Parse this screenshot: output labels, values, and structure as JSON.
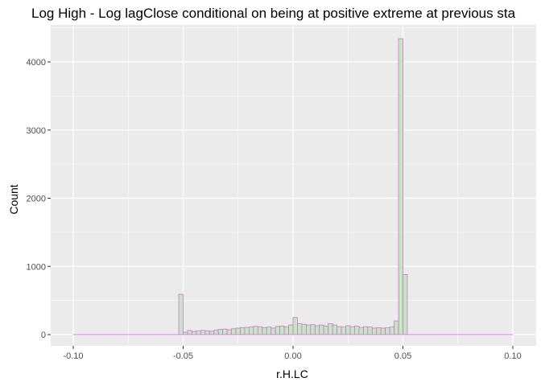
{
  "chart_data": {
    "type": "bar",
    "title": "Log High - Log lagClose conditional on being at positive extreme at previous sta",
    "xlabel": "r.H.LC",
    "ylabel": "Count",
    "xlim": [
      -0.1,
      0.1
    ],
    "ylim": [
      0,
      4400
    ],
    "x_ticks": [
      -0.1,
      -0.05,
      0.0,
      0.05,
      0.1
    ],
    "x_tick_labels": [
      "-0.10",
      "-0.05",
      "0.00",
      "0.05",
      "0.10"
    ],
    "y_ticks": [
      0,
      1000,
      2000,
      3000,
      4000
    ],
    "y_tick_labels": [
      "0",
      "1000",
      "2000",
      "3000",
      "4000"
    ],
    "bin_width": 0.002,
    "grid": true,
    "colors": {
      "fill": "#c1e8c1",
      "outline": "#da70d6",
      "panel": "#ebebeb",
      "grid": "#ffffff"
    },
    "bins": [
      {
        "x": -0.1,
        "count": 0
      },
      {
        "x": -0.098,
        "count": 0
      },
      {
        "x": -0.096,
        "count": 0
      },
      {
        "x": -0.094,
        "count": 0
      },
      {
        "x": -0.092,
        "count": 0
      },
      {
        "x": -0.09,
        "count": 0
      },
      {
        "x": -0.088,
        "count": 0
      },
      {
        "x": -0.086,
        "count": 0
      },
      {
        "x": -0.084,
        "count": 0
      },
      {
        "x": -0.082,
        "count": 0
      },
      {
        "x": -0.08,
        "count": 0
      },
      {
        "x": -0.078,
        "count": 0
      },
      {
        "x": -0.076,
        "count": 0
      },
      {
        "x": -0.074,
        "count": 0
      },
      {
        "x": -0.072,
        "count": 0
      },
      {
        "x": -0.07,
        "count": 0
      },
      {
        "x": -0.068,
        "count": 0
      },
      {
        "x": -0.066,
        "count": 0
      },
      {
        "x": -0.064,
        "count": 0
      },
      {
        "x": -0.062,
        "count": 0
      },
      {
        "x": -0.06,
        "count": 0
      },
      {
        "x": -0.058,
        "count": 0
      },
      {
        "x": -0.056,
        "count": 0
      },
      {
        "x": -0.054,
        "count": 0
      },
      {
        "x": -0.052,
        "count": 590
      },
      {
        "x": -0.05,
        "count": 35
      },
      {
        "x": -0.048,
        "count": 60
      },
      {
        "x": -0.046,
        "count": 45
      },
      {
        "x": -0.044,
        "count": 55
      },
      {
        "x": -0.042,
        "count": 60
      },
      {
        "x": -0.04,
        "count": 55
      },
      {
        "x": -0.038,
        "count": 50
      },
      {
        "x": -0.036,
        "count": 65
      },
      {
        "x": -0.034,
        "count": 75
      },
      {
        "x": -0.032,
        "count": 80
      },
      {
        "x": -0.03,
        "count": 70
      },
      {
        "x": -0.028,
        "count": 85
      },
      {
        "x": -0.026,
        "count": 95
      },
      {
        "x": -0.024,
        "count": 100
      },
      {
        "x": -0.022,
        "count": 105
      },
      {
        "x": -0.02,
        "count": 110
      },
      {
        "x": -0.018,
        "count": 120
      },
      {
        "x": -0.016,
        "count": 115
      },
      {
        "x": -0.014,
        "count": 100
      },
      {
        "x": -0.012,
        "count": 110
      },
      {
        "x": -0.01,
        "count": 95
      },
      {
        "x": -0.008,
        "count": 120
      },
      {
        "x": -0.006,
        "count": 125
      },
      {
        "x": -0.004,
        "count": 110
      },
      {
        "x": -0.002,
        "count": 140
      },
      {
        "x": 0.0,
        "count": 250
      },
      {
        "x": 0.002,
        "count": 160
      },
      {
        "x": 0.004,
        "count": 150
      },
      {
        "x": 0.006,
        "count": 140
      },
      {
        "x": 0.008,
        "count": 145
      },
      {
        "x": 0.01,
        "count": 130
      },
      {
        "x": 0.012,
        "count": 140
      },
      {
        "x": 0.014,
        "count": 125
      },
      {
        "x": 0.016,
        "count": 160
      },
      {
        "x": 0.018,
        "count": 140
      },
      {
        "x": 0.02,
        "count": 115
      },
      {
        "x": 0.022,
        "count": 110
      },
      {
        "x": 0.024,
        "count": 130
      },
      {
        "x": 0.026,
        "count": 115
      },
      {
        "x": 0.028,
        "count": 125
      },
      {
        "x": 0.03,
        "count": 105
      },
      {
        "x": 0.032,
        "count": 115
      },
      {
        "x": 0.034,
        "count": 110
      },
      {
        "x": 0.036,
        "count": 95
      },
      {
        "x": 0.038,
        "count": 100
      },
      {
        "x": 0.04,
        "count": 95
      },
      {
        "x": 0.042,
        "count": 100
      },
      {
        "x": 0.044,
        "count": 110
      },
      {
        "x": 0.046,
        "count": 200
      },
      {
        "x": 0.048,
        "count": 4340
      },
      {
        "x": 0.05,
        "count": 880
      },
      {
        "x": 0.052,
        "count": 0
      },
      {
        "x": 0.054,
        "count": 0
      },
      {
        "x": 0.056,
        "count": 0
      },
      {
        "x": 0.058,
        "count": 0
      },
      {
        "x": 0.06,
        "count": 0
      },
      {
        "x": 0.062,
        "count": 0
      },
      {
        "x": 0.064,
        "count": 0
      },
      {
        "x": 0.066,
        "count": 0
      },
      {
        "x": 0.068,
        "count": 0
      },
      {
        "x": 0.07,
        "count": 0
      },
      {
        "x": 0.072,
        "count": 0
      },
      {
        "x": 0.074,
        "count": 0
      },
      {
        "x": 0.076,
        "count": 0
      },
      {
        "x": 0.078,
        "count": 0
      },
      {
        "x": 0.08,
        "count": 0
      },
      {
        "x": 0.082,
        "count": 0
      },
      {
        "x": 0.084,
        "count": 0
      },
      {
        "x": 0.086,
        "count": 0
      },
      {
        "x": 0.088,
        "count": 0
      },
      {
        "x": 0.09,
        "count": 0
      },
      {
        "x": 0.092,
        "count": 0
      },
      {
        "x": 0.094,
        "count": 0
      },
      {
        "x": 0.096,
        "count": 0
      },
      {
        "x": 0.098,
        "count": 0
      }
    ]
  }
}
